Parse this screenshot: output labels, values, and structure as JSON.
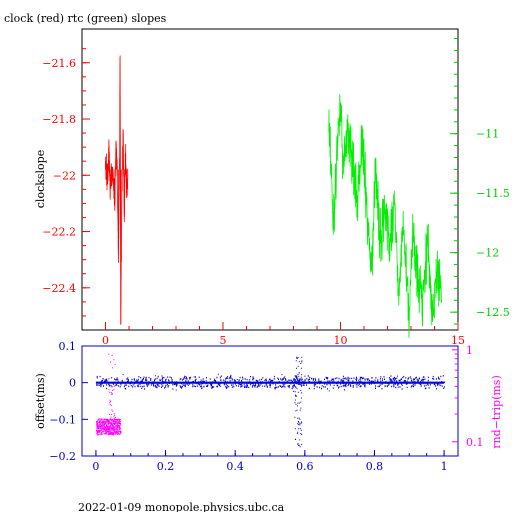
{
  "page": {
    "footer": "2022-01-09  monopole.physics.ubc.ca"
  },
  "colors": {
    "red": "#ff0000",
    "green": "#00ee00",
    "blue": "#0000dd",
    "magenta": "#ff00ff",
    "black": "#000000"
  },
  "chart_data": [
    {
      "type": "line",
      "title": "clock (red) rtc (green) slopes",
      "ylabel": "clockslope",
      "xlim": [
        -1,
        15
      ],
      "ylim": [
        -22.55,
        -21.48
      ],
      "y2lim": [
        -12.65,
        -10.12
      ],
      "x_ticks": [
        0,
        5,
        10,
        15
      ],
      "y_ticks": [
        -21.6,
        -21.8,
        -22,
        -22.2,
        -22.4
      ],
      "y_tick_labels": [
        "−21.6",
        "−21.8",
        "−22",
        "−22.2",
        "−22.4"
      ],
      "y2_ticks": [
        -11,
        -11.5,
        -12,
        -12.5
      ],
      "y2_tick_labels": [
        "−11",
        "−11.5",
        "−12",
        "−12.5"
      ],
      "grid": false,
      "series": [
        {
          "name": "clock",
          "axis": "left",
          "color": "#ff0000",
          "x_range": [
            0,
            0.95
          ],
          "points": [
            [
              0,
              -21.95
            ],
            [
              0.1,
              -22.02
            ],
            [
              0.15,
              -21.9
            ],
            [
              0.2,
              -22.05
            ],
            [
              0.3,
              -21.97
            ],
            [
              0.4,
              -22.1
            ],
            [
              0.45,
              -21.88
            ],
            [
              0.5,
              -22.0
            ],
            [
              0.55,
              -22.28
            ],
            [
              0.6,
              -21.94
            ],
            [
              0.62,
              -21.58
            ],
            [
              0.65,
              -22.53
            ],
            [
              0.7,
              -22.05
            ],
            [
              0.75,
              -21.85
            ],
            [
              0.8,
              -22.15
            ],
            [
              0.85,
              -21.92
            ],
            [
              0.9,
              -22.08
            ],
            [
              0.95,
              -21.98
            ]
          ]
        },
        {
          "name": "rtc",
          "axis": "right",
          "color": "#00ee00",
          "x_range": [
            9.5,
            14.3
          ],
          "points": [
            [
              9.5,
              -10.9
            ],
            [
              9.7,
              -11.7
            ],
            [
              9.9,
              -11.0
            ],
            [
              10.0,
              -10.72
            ],
            [
              10.1,
              -11.3
            ],
            [
              10.3,
              -11.0
            ],
            [
              10.5,
              -11.2
            ],
            [
              10.7,
              -11.6
            ],
            [
              10.9,
              -11.1
            ],
            [
              11.1,
              -11.5
            ],
            [
              11.3,
              -12.2
            ],
            [
              11.5,
              -11.3
            ],
            [
              11.7,
              -11.9
            ],
            [
              11.9,
              -11.6
            ],
            [
              12.1,
              -12.0
            ],
            [
              12.3,
              -11.6
            ],
            [
              12.5,
              -12.3
            ],
            [
              12.7,
              -11.8
            ],
            [
              12.9,
              -12.5
            ],
            [
              13.1,
              -11.8
            ],
            [
              13.3,
              -12.3
            ],
            [
              13.5,
              -12.4
            ],
            [
              13.7,
              -11.9
            ],
            [
              13.9,
              -12.5
            ],
            [
              14.1,
              -12.2
            ],
            [
              14.3,
              -12.3
            ]
          ]
        }
      ]
    },
    {
      "type": "scatter",
      "ylabel": "offset(ms)",
      "y2label": "rnd−trip(ms)",
      "xlim": [
        -0.04,
        1.04
      ],
      "ylim": [
        -0.2,
        0.1
      ],
      "y2lim": [
        0.07,
        1.1
      ],
      "y2_scale": "log",
      "x_ticks": [
        0,
        0.2,
        0.4,
        0.6,
        0.8,
        1
      ],
      "x_tick_labels": [
        "0",
        "0.2",
        "0.4",
        "0.6",
        "0.8",
        "1"
      ],
      "y_ticks": [
        0.1,
        0,
        -0.1,
        -0.2
      ],
      "y_tick_labels": [
        "0.1",
        "0",
        "−0.1",
        "−0.2"
      ],
      "y2_ticks": [
        1,
        0.1
      ],
      "y2_tick_labels": [
        "1",
        "0.1"
      ],
      "series": [
        {
          "name": "offset",
          "axis": "left",
          "color": "#0000dd",
          "baseline": 0.0,
          "x_range": [
            0,
            1
          ],
          "spike_x": 0.58,
          "spike_range": [
            -0.18,
            0.07
          ]
        },
        {
          "name": "rnd-trip",
          "axis": "right",
          "color": "#ff00ff",
          "x_range": [
            0,
            0.07
          ],
          "cluster_range": [
            0.12,
            0.18
          ],
          "spike_range": [
            0.12,
            1.0
          ]
        }
      ]
    }
  ]
}
